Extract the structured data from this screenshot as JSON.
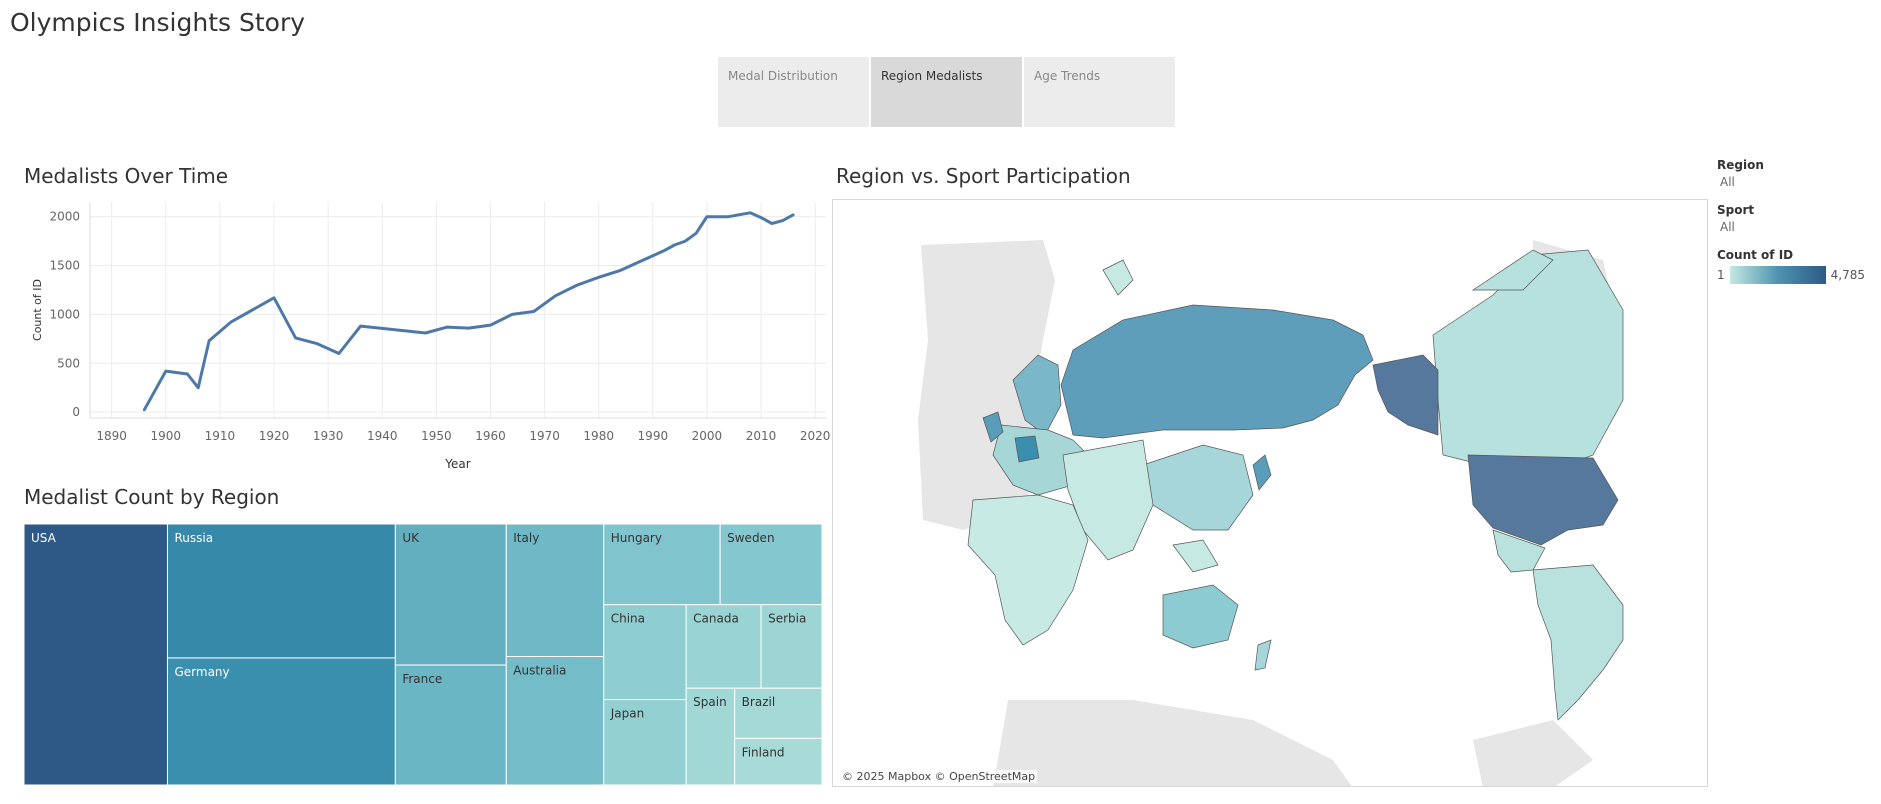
{
  "story": {
    "title": "Olympics Insights Story",
    "tabs": [
      {
        "label": "Medal Distribution",
        "active": false
      },
      {
        "label": "Region Medalists",
        "active": true
      },
      {
        "label": "Age Trends",
        "active": false
      }
    ]
  },
  "line_section": {
    "title": "Medalists Over Time"
  },
  "treemap_section": {
    "title": "Medalist Count by Region"
  },
  "map_section": {
    "title": "Region vs. Sport Participation",
    "attribution": "© 2025 Mapbox © OpenStreetMap"
  },
  "filters": {
    "region_label": "Region",
    "region_value": "All",
    "sport_label": "Sport",
    "sport_value": "All"
  },
  "legend": {
    "title": "Count of ID",
    "min_label": "1",
    "max_label": "4,785",
    "colors": [
      "#c4e8e3",
      "#4d94b0",
      "#2e5987"
    ]
  },
  "colors": {
    "line": "#4e79a7",
    "grid": "#ececec",
    "map_land_nodata": "#e6e6e6",
    "map_border": "#555555"
  },
  "chart_data": [
    {
      "type": "line",
      "title": "Medalists Over Time",
      "xlabel": "Year",
      "ylabel": "Count of ID",
      "xlim": [
        1886,
        2022
      ],
      "ylim": [
        -60,
        2150
      ],
      "xticks": [
        1890,
        1900,
        1910,
        1920,
        1930,
        1940,
        1950,
        1960,
        1970,
        1980,
        1990,
        2000,
        2010,
        2020
      ],
      "yticks": [
        0,
        500,
        1000,
        1500,
        2000
      ],
      "x": [
        1896,
        1900,
        1904,
        1906,
        1908,
        1912,
        1920,
        1924,
        1928,
        1932,
        1936,
        1948,
        1952,
        1956,
        1960,
        1964,
        1968,
        1972,
        1976,
        1980,
        1984,
        1988,
        1992,
        1994,
        1996,
        1998,
        2000,
        2002,
        2004,
        2006,
        2008,
        2010,
        2012,
        2014,
        2016
      ],
      "values": [
        20,
        420,
        390,
        250,
        730,
        920,
        1170,
        760,
        700,
        600,
        880,
        810,
        870,
        860,
        890,
        1000,
        1030,
        1190,
        1300,
        1380,
        1450,
        1550,
        1650,
        1710,
        1750,
        1830,
        2000,
        2000,
        2000,
        2020,
        2040,
        1990,
        1930,
        1960,
        2020
      ],
      "grid": true
    },
    {
      "type": "treemap",
      "title": "Medalist Count by Region",
      "items": [
        {
          "label": "USA",
          "value": 4785,
          "color": "#2e5987"
        },
        {
          "label": "Russia",
          "value": 3900,
          "color": "#3789aa"
        },
        {
          "label": "Germany",
          "value": 3700,
          "color": "#3a8fae"
        },
        {
          "label": "UK",
          "value": 2000,
          "color": "#63afbf"
        },
        {
          "label": "France",
          "value": 1700,
          "color": "#6ab6c4"
        },
        {
          "label": "Italy",
          "value": 1650,
          "color": "#6fb9c6"
        },
        {
          "label": "Australia",
          "value": 1600,
          "color": "#74bcc8"
        },
        {
          "label": "Hungary",
          "value": 1200,
          "color": "#80c4cd"
        },
        {
          "label": "Sweden",
          "value": 1050,
          "color": "#85c7ce"
        },
        {
          "label": "China",
          "value": 1000,
          "color": "#8ecdd0"
        },
        {
          "label": "Japan",
          "value": 900,
          "color": "#93d0d2"
        },
        {
          "label": "Canada",
          "value": 800,
          "color": "#99d3d3"
        },
        {
          "label": "Serbia",
          "value": 650,
          "color": "#9dd5d4"
        },
        {
          "label": "Spain",
          "value": 600,
          "color": "#a1d7d5"
        },
        {
          "label": "Brazil",
          "value": 560,
          "color": "#a5d9d6"
        },
        {
          "label": "Finland",
          "value": 520,
          "color": "#a8dad7"
        }
      ]
    }
  ]
}
